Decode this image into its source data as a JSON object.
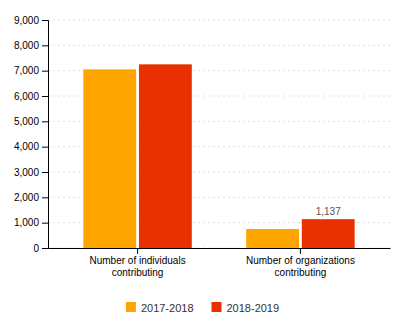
{
  "chart_data": {
    "type": "bar",
    "categories": [
      "Number of individuals\ncontributing",
      "Number of organizations\ncontributing"
    ],
    "series": [
      {
        "name": "2017-2018",
        "color": "#FFA500",
        "values": [
          7050,
          750
        ]
      },
      {
        "name": "2018-2019",
        "color": "#E83000",
        "values": [
          7250,
          1137
        ],
        "value_labels": [
          null,
          "1,137"
        ]
      }
    ],
    "ylim": [
      0,
      9000
    ],
    "yticks": [
      0,
      {
        "value": 1000,
        "label": "1,000"
      },
      {
        "value": 2000,
        "label": "2,000"
      },
      {
        "value": 3000,
        "label": "3,000"
      },
      {
        "value": 4000,
        "label": "4,000"
      },
      {
        "value": 5000,
        "label": "5,000"
      },
      {
        "value": 6000,
        "label": "6,000"
      },
      {
        "value": 7000,
        "label": "7,000"
      },
      {
        "value": 8000,
        "label": "8,000"
      },
      {
        "value": 9000,
        "label": "9,000"
      }
    ],
    "grid": true,
    "legend": "bottom"
  }
}
